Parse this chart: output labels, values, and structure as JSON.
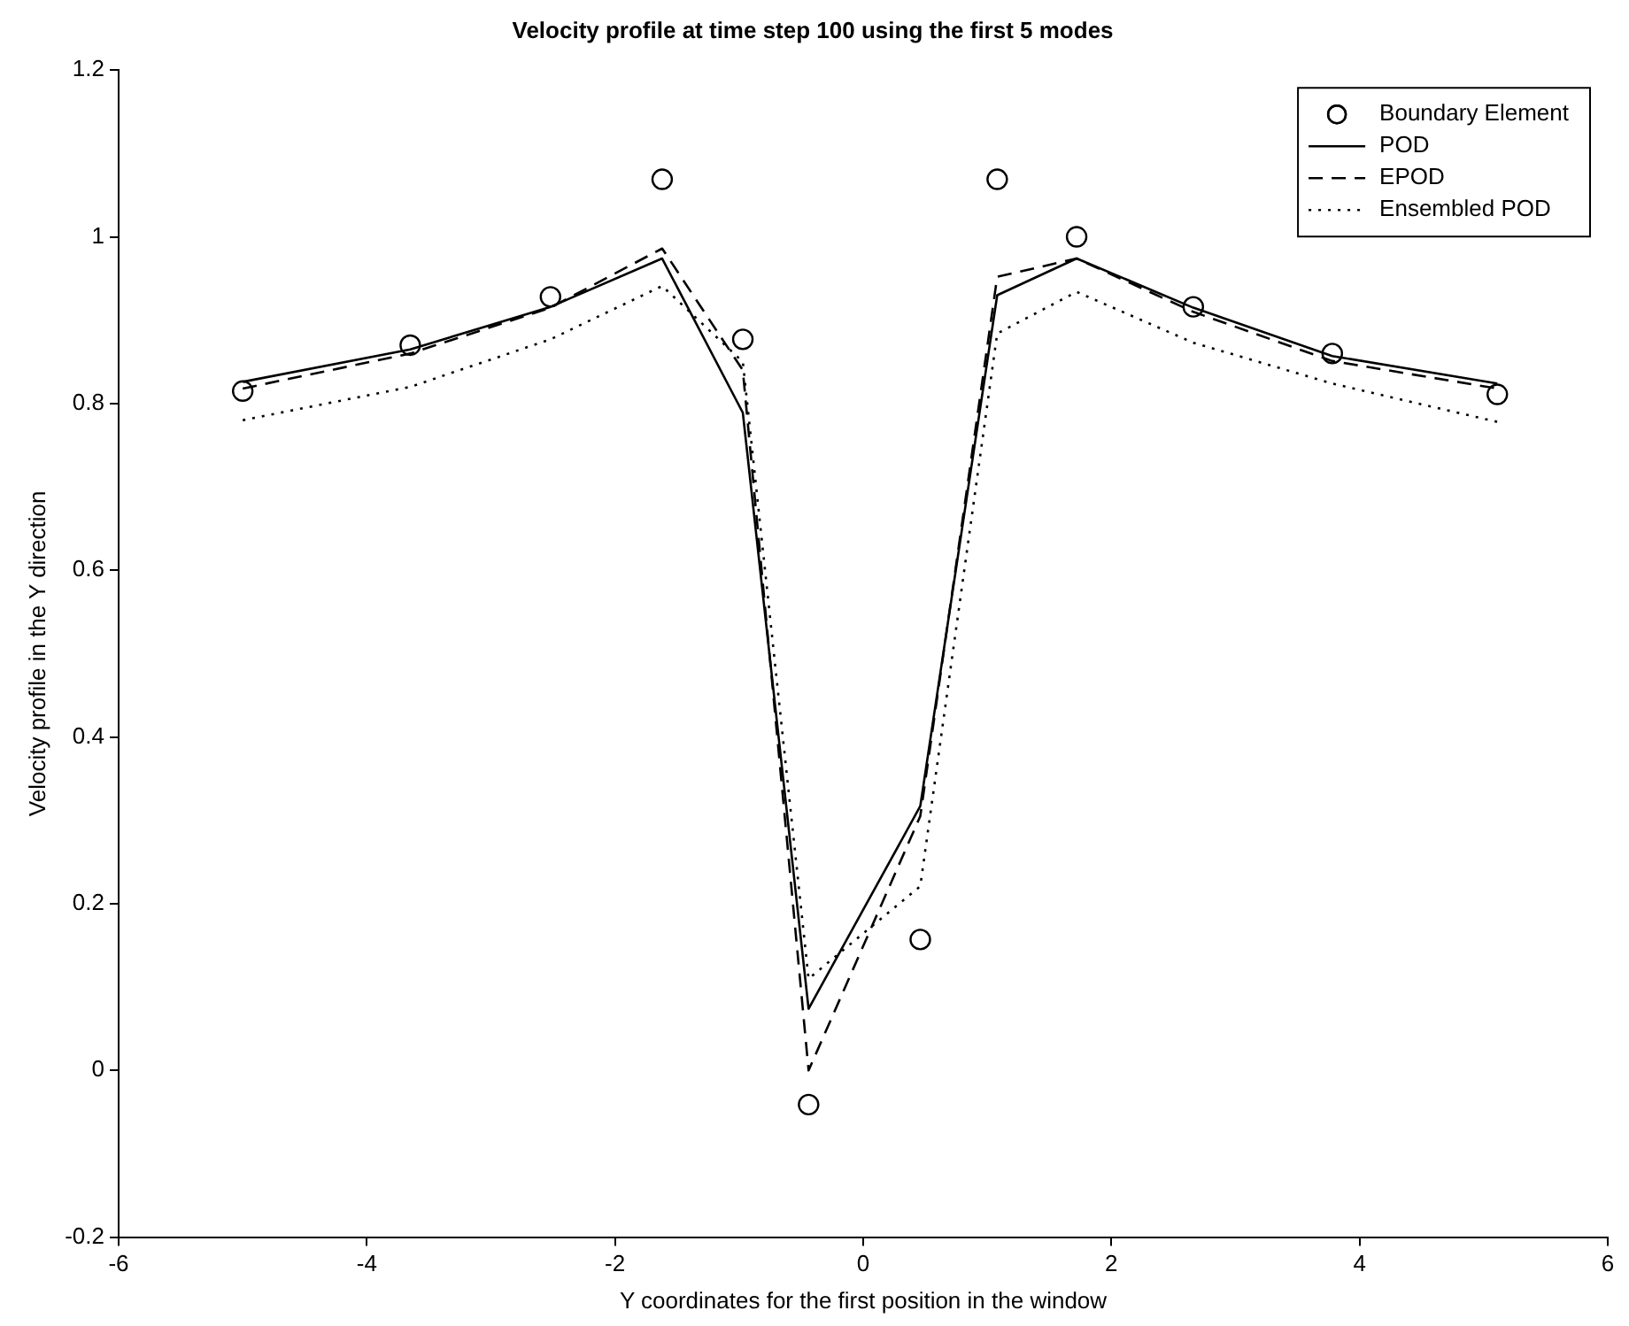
{
  "chart_data": {
    "type": "line",
    "title": "Velocity profile at time step 100 using the first 5 modes",
    "xlabel": "Y coordinates for the first position in the window",
    "ylabel": "Velocity profile in the Y direction",
    "x": [
      -5,
      -3.65,
      -2.52,
      -1.62,
      -0.97,
      -0.44,
      0.46,
      1.08,
      1.72,
      2.66,
      3.78,
      5.11
    ],
    "xlim": [
      -6,
      6
    ],
    "xticks": [
      -6,
      -4,
      -2,
      0,
      2,
      4,
      6
    ],
    "ylim": [
      -0.2,
      1.2
    ],
    "yticks": [
      -0.2,
      0,
      0.2,
      0.4,
      0.6,
      0.8,
      1,
      1.2
    ],
    "legend": "top right",
    "series": [
      {
        "name": "Boundary Element",
        "type": "scatter",
        "marker": "circle",
        "color": "#000000",
        "values": [
          0.815,
          0.87,
          0.928,
          1.069,
          0.877,
          -0.041,
          0.157,
          1.069,
          1.0,
          0.916,
          0.86,
          0.811
        ]
      },
      {
        "name": "POD",
        "line_style": "solid",
        "color": "#000000",
        "values": [
          0.826,
          0.865,
          0.916,
          0.974,
          0.789,
          0.074,
          0.317,
          0.93,
          0.974,
          0.915,
          0.857,
          0.824
        ]
      },
      {
        "name": "EPOD",
        "line_style": "dashed",
        "color": "#000000",
        "values": [
          0.818,
          0.86,
          0.915,
          0.986,
          0.84,
          0.0,
          0.305,
          0.952,
          0.974,
          0.91,
          0.851,
          0.818
        ]
      },
      {
        "name": "Ensembled POD",
        "line_style": "dotted",
        "color": "#000000",
        "values": [
          0.78,
          0.82,
          0.877,
          0.941,
          0.85,
          0.11,
          0.221,
          0.884,
          0.934,
          0.873,
          0.824,
          0.778
        ]
      }
    ]
  }
}
